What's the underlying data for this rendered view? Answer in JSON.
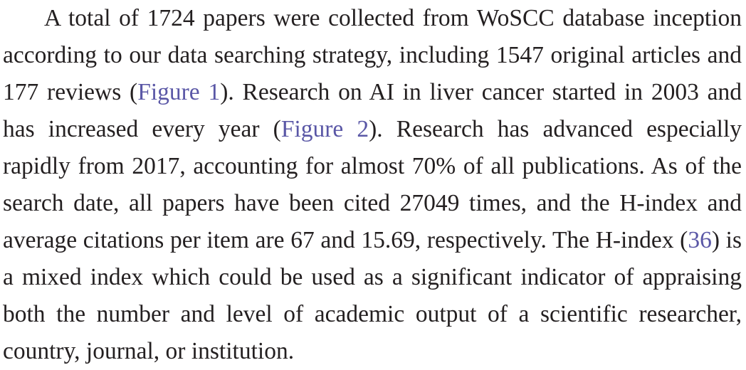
{
  "paragraph": {
    "s1": "A total of 1724 papers were collected from WoSCC database inception according to our data searching strategy, including 1547 original articles and 177 reviews (",
    "link_figure1": "Figure 1",
    "s2": "). Research on AI in liver cancer started in 2003 and has increased every year (",
    "link_figure2": "Figure 2",
    "s3": "). Research has advanced especially rapidly from 2017, accounting for almost 70% of all publications. As of the search date, all papers have been cited 27049 times, and the H-index and average citations per item are 67 and 15.69, respectively. The H-index (",
    "link_ref36": "36",
    "s4": ") is a mixed index which could be used as a significant indicator of appraising both the number and level of academic output of a scientific researcher, country, journal, or institution."
  },
  "colors": {
    "text": "#231f20",
    "link": "#5a57a6"
  }
}
